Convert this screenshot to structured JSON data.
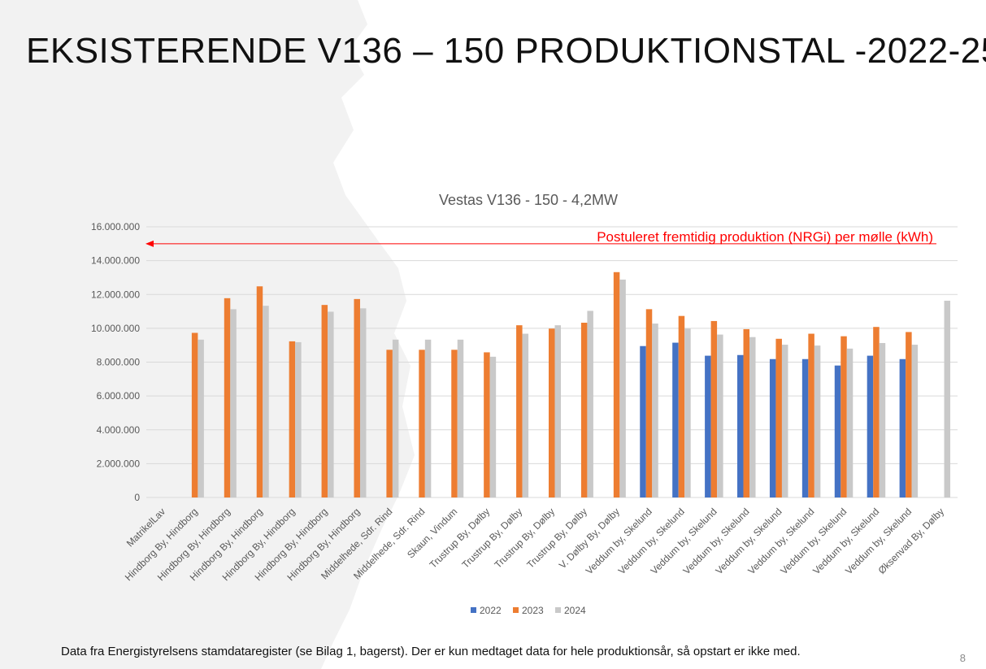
{
  "slide": {
    "title": "EKSISTERENDE V136 – 150 PRODUKTIONSTAL -2022-25",
    "footnote": "Data fra Energistyrelsens stamdataregister (se Bilag 1, bagerst). Der er kun medtaget data for hele produktionsår, så opstart er ikke med.",
    "page_number": "8"
  },
  "colors": {
    "series_2022": "#4472C4",
    "series_2023": "#ED7D31",
    "series_2024": "#C9C9C9",
    "annotation": "#FF0000",
    "gridline": "#D9D9D9",
    "background_shape": "#F2F2F2"
  },
  "chart_data": {
    "type": "bar",
    "title": "Vestas V136 - 150 - 4,2MW",
    "xlabel": "",
    "ylabel": "",
    "ylim": [
      0,
      16000000
    ],
    "y_ticks": [
      0,
      2000000,
      4000000,
      6000000,
      8000000,
      10000000,
      12000000,
      14000000,
      16000000
    ],
    "y_tick_labels": [
      "0",
      "2.000.000",
      "4.000.000",
      "6.000.000",
      "8.000.000",
      "10.000.000",
      "12.000.000",
      "14.000.000",
      "16.000.000"
    ],
    "grid": true,
    "legend_position": "bottom",
    "categories": [
      "MatrikelLav",
      "Hindborg By, Hindborg",
      "Hindborg By, Hindborg",
      "Hindborg By, Hindborg",
      "Hindborg By, Hindborg",
      "Hindborg By, Hindborg",
      "Hindborg By, Hindborg",
      "Middelhede, Sdr. Rind",
      "Middelhede, Sdr. Rind",
      "Skaun, Vindum",
      "Trustrup By, Dølby",
      "Trustrup By, Dølby",
      "Trustrup By, Dølby",
      "Trustrup By, Dølby",
      "V. Dølby By, Dølby",
      "Veddum by, Skelund",
      "Veddum by, Skelund",
      "Veddum by, Skelund",
      "Veddum by, Skelund",
      "Veddum by, Skelund",
      "Veddum by, Skelund",
      "Veddum by, Skelund",
      "Veddum by, Skelund",
      "Veddum by, Skelund",
      "Øksenvad By, Dølby"
    ],
    "series": [
      {
        "name": "2022",
        "color": "#4472C4",
        "values": [
          null,
          null,
          null,
          null,
          null,
          null,
          null,
          null,
          null,
          null,
          null,
          null,
          null,
          null,
          null,
          8950000,
          9150000,
          8380000,
          8420000,
          8180000,
          8180000,
          7800000,
          8380000,
          8180000,
          null
        ]
      },
      {
        "name": "2023",
        "color": "#ED7D31",
        "values": [
          null,
          9730000,
          11780000,
          12480000,
          9230000,
          11380000,
          11730000,
          8730000,
          8730000,
          8730000,
          8580000,
          10180000,
          9980000,
          10330000,
          13320000,
          11130000,
          10730000,
          10430000,
          9950000,
          9380000,
          9680000,
          9530000,
          10080000,
          9780000,
          null
        ]
      },
      {
        "name": "2024",
        "color": "#C9C9C9",
        "values": [
          null,
          9330000,
          11130000,
          11330000,
          9180000,
          10980000,
          11180000,
          9330000,
          9330000,
          9330000,
          8320000,
          9680000,
          10180000,
          11030000,
          12880000,
          10280000,
          9980000,
          9630000,
          9480000,
          9030000,
          8980000,
          8800000,
          9130000,
          9030000,
          11630000
        ]
      }
    ],
    "annotations": [
      {
        "text": "Postuleret fremtidig produktion (NRGi) per mølle (kWh)",
        "y": 15000000,
        "arrow": "left",
        "color": "#FF0000"
      }
    ]
  }
}
